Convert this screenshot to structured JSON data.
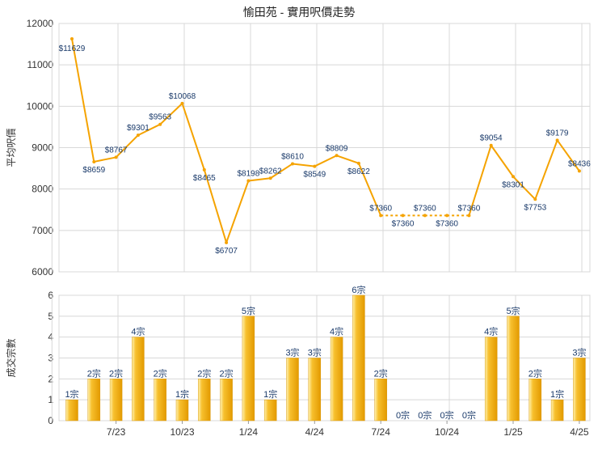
{
  "title": "愉田苑 - 實用呎價走勢",
  "colors": {
    "line": "#f5a300",
    "bar_light": "#fff2b0",
    "bar_mid": "#f7c02e",
    "bar_dark": "#e39a00",
    "grid": "#d8d8d8",
    "axis_text": "#333333",
    "label_text": "#1a3a6a"
  },
  "chart_data": [
    {
      "type": "line",
      "title": "愉田苑 - 實用呎價走勢",
      "ylabel": "平均呎價",
      "ylim": [
        6000,
        12000
      ],
      "yticks": [
        6000,
        7000,
        8000,
        9000,
        10000,
        11000,
        12000
      ],
      "grid": true,
      "point_labels": [
        "$11629",
        "$8659",
        "$8767",
        "$9301",
        "$9563",
        "$10068",
        "$8465",
        "$6707",
        "$8198",
        "$8262",
        "$8610",
        "$8549",
        "$8809",
        "$8622",
        "$7360",
        "$7360",
        "$7360",
        "$7360",
        "$7360",
        "$9054",
        "$8301",
        "$7753",
        "$9179",
        "$8436"
      ],
      "series": [
        {
          "values": [
            11629,
            8659,
            8767,
            9301,
            9563,
            10068,
            8465,
            6707,
            8198,
            8262,
            8610,
            8549,
            8809,
            8622,
            7360,
            7360,
            7360,
            7360,
            7360,
            9054,
            8301,
            7753,
            9179,
            8436
          ]
        }
      ]
    },
    {
      "type": "bar",
      "ylabel": "成交宗數",
      "ylim": [
        0,
        6
      ],
      "yticks": [
        0,
        1,
        2,
        3,
        4,
        5,
        6
      ],
      "grid": true,
      "x_tick_labels": [
        "7/23",
        "10/23",
        "1/24",
        "4/24",
        "7/24",
        "10/24",
        "1/25",
        "4/25"
      ],
      "bar_labels": [
        "1宗",
        "2宗",
        "2宗",
        "4宗",
        "2宗",
        "1宗",
        "2宗",
        "2宗",
        "5宗",
        "1宗",
        "3宗",
        "3宗",
        "4宗",
        "6宗",
        "2宗",
        "0宗",
        "0宗",
        "0宗",
        "0宗",
        "4宗",
        "5宗",
        "2宗",
        "1宗",
        "3宗"
      ],
      "values": [
        1,
        2,
        2,
        4,
        2,
        1,
        2,
        2,
        5,
        1,
        3,
        3,
        4,
        6,
        2,
        0,
        0,
        0,
        0,
        4,
        5,
        2,
        1,
        3
      ]
    }
  ]
}
